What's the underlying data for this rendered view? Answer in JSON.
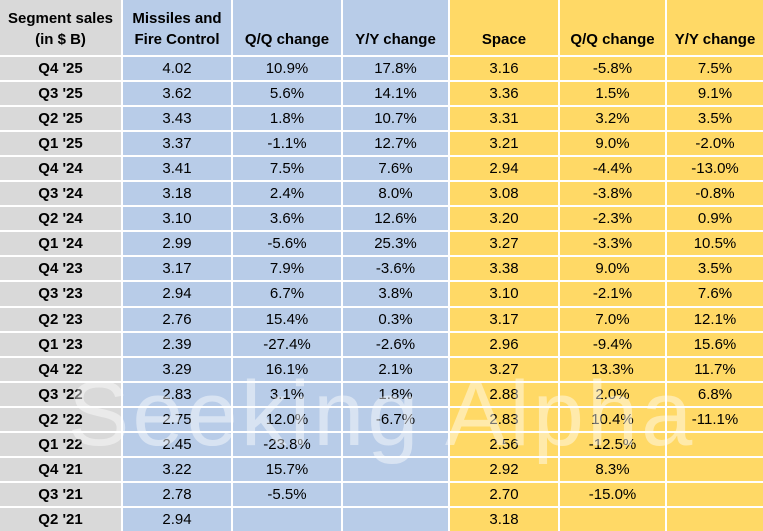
{
  "colors": {
    "label_column_bg": "#d9d9d9",
    "missiles_columns_bg": "#b8cce8",
    "space_columns_bg": "#ffd966",
    "gridline": "#ffffff",
    "text": "#000000"
  },
  "watermark": "Seeking Alpha",
  "header": {
    "col0_line1": "Segment sales",
    "col0_line2": "(in $ B)",
    "col1_line1": "Missiles and",
    "col1_line2": "Fire Control",
    "col2": "Q/Q change",
    "col3": "Y/Y change",
    "col4": "Space",
    "col5": "Q/Q change",
    "col6": "Y/Y change"
  },
  "chart_data": {
    "type": "table",
    "title": "Segment sales (in $ B)",
    "columns": [
      "Segment sales (in $ B)",
      "Missiles and Fire Control",
      "Q/Q change",
      "Y/Y change",
      "Space",
      "Q/Q change",
      "Y/Y change"
    ],
    "rows": [
      [
        "Q4 '25",
        "4.02",
        "10.9%",
        "17.8%",
        "3.16",
        "-5.8%",
        "7.5%"
      ],
      [
        "Q3 '25",
        "3.62",
        "5.6%",
        "14.1%",
        "3.36",
        "1.5%",
        "9.1%"
      ],
      [
        "Q2 '25",
        "3.43",
        "1.8%",
        "10.7%",
        "3.31",
        "3.2%",
        "3.5%"
      ],
      [
        "Q1 '25",
        "3.37",
        "-1.1%",
        "12.7%",
        "3.21",
        "9.0%",
        "-2.0%"
      ],
      [
        "Q4 '24",
        "3.41",
        "7.5%",
        "7.6%",
        "2.94",
        "-4.4%",
        "-13.0%"
      ],
      [
        "Q3 '24",
        "3.18",
        "2.4%",
        "8.0%",
        "3.08",
        "-3.8%",
        "-0.8%"
      ],
      [
        "Q2 '24",
        "3.10",
        "3.6%",
        "12.6%",
        "3.20",
        "-2.3%",
        "0.9%"
      ],
      [
        "Q1 '24",
        "2.99",
        "-5.6%",
        "25.3%",
        "3.27",
        "-3.3%",
        "10.5%"
      ],
      [
        "Q4 '23",
        "3.17",
        "7.9%",
        "-3.6%",
        "3.38",
        "9.0%",
        "3.5%"
      ],
      [
        "Q3 '23",
        "2.94",
        "6.7%",
        "3.8%",
        "3.10",
        "-2.1%",
        "7.6%"
      ],
      [
        "Q2 '23",
        "2.76",
        "15.4%",
        "0.3%",
        "3.17",
        "7.0%",
        "12.1%"
      ],
      [
        "Q1 '23",
        "2.39",
        "-27.4%",
        "-2.6%",
        "2.96",
        "-9.4%",
        "15.6%"
      ],
      [
        "Q4 '22",
        "3.29",
        "16.1%",
        "2.1%",
        "3.27",
        "13.3%",
        "11.7%"
      ],
      [
        "Q3 '22",
        "2.83",
        "3.1%",
        "1.8%",
        "2.88",
        "2.0%",
        "6.8%"
      ],
      [
        "Q2 '22",
        "2.75",
        "12.0%",
        "-6.7%",
        "2.83",
        "10.4%",
        "-11.1%"
      ],
      [
        "Q1 '22",
        "2.45",
        "-23.8%",
        "",
        "2.56",
        "-12.5%",
        ""
      ],
      [
        "Q4 '21",
        "3.22",
        "15.7%",
        "",
        "2.92",
        "8.3%",
        ""
      ],
      [
        "Q3 '21",
        "2.78",
        "-5.5%",
        "",
        "2.70",
        "-15.0%",
        ""
      ],
      [
        "Q2 '21",
        "2.94",
        "",
        "",
        "3.18",
        "",
        ""
      ]
    ]
  }
}
